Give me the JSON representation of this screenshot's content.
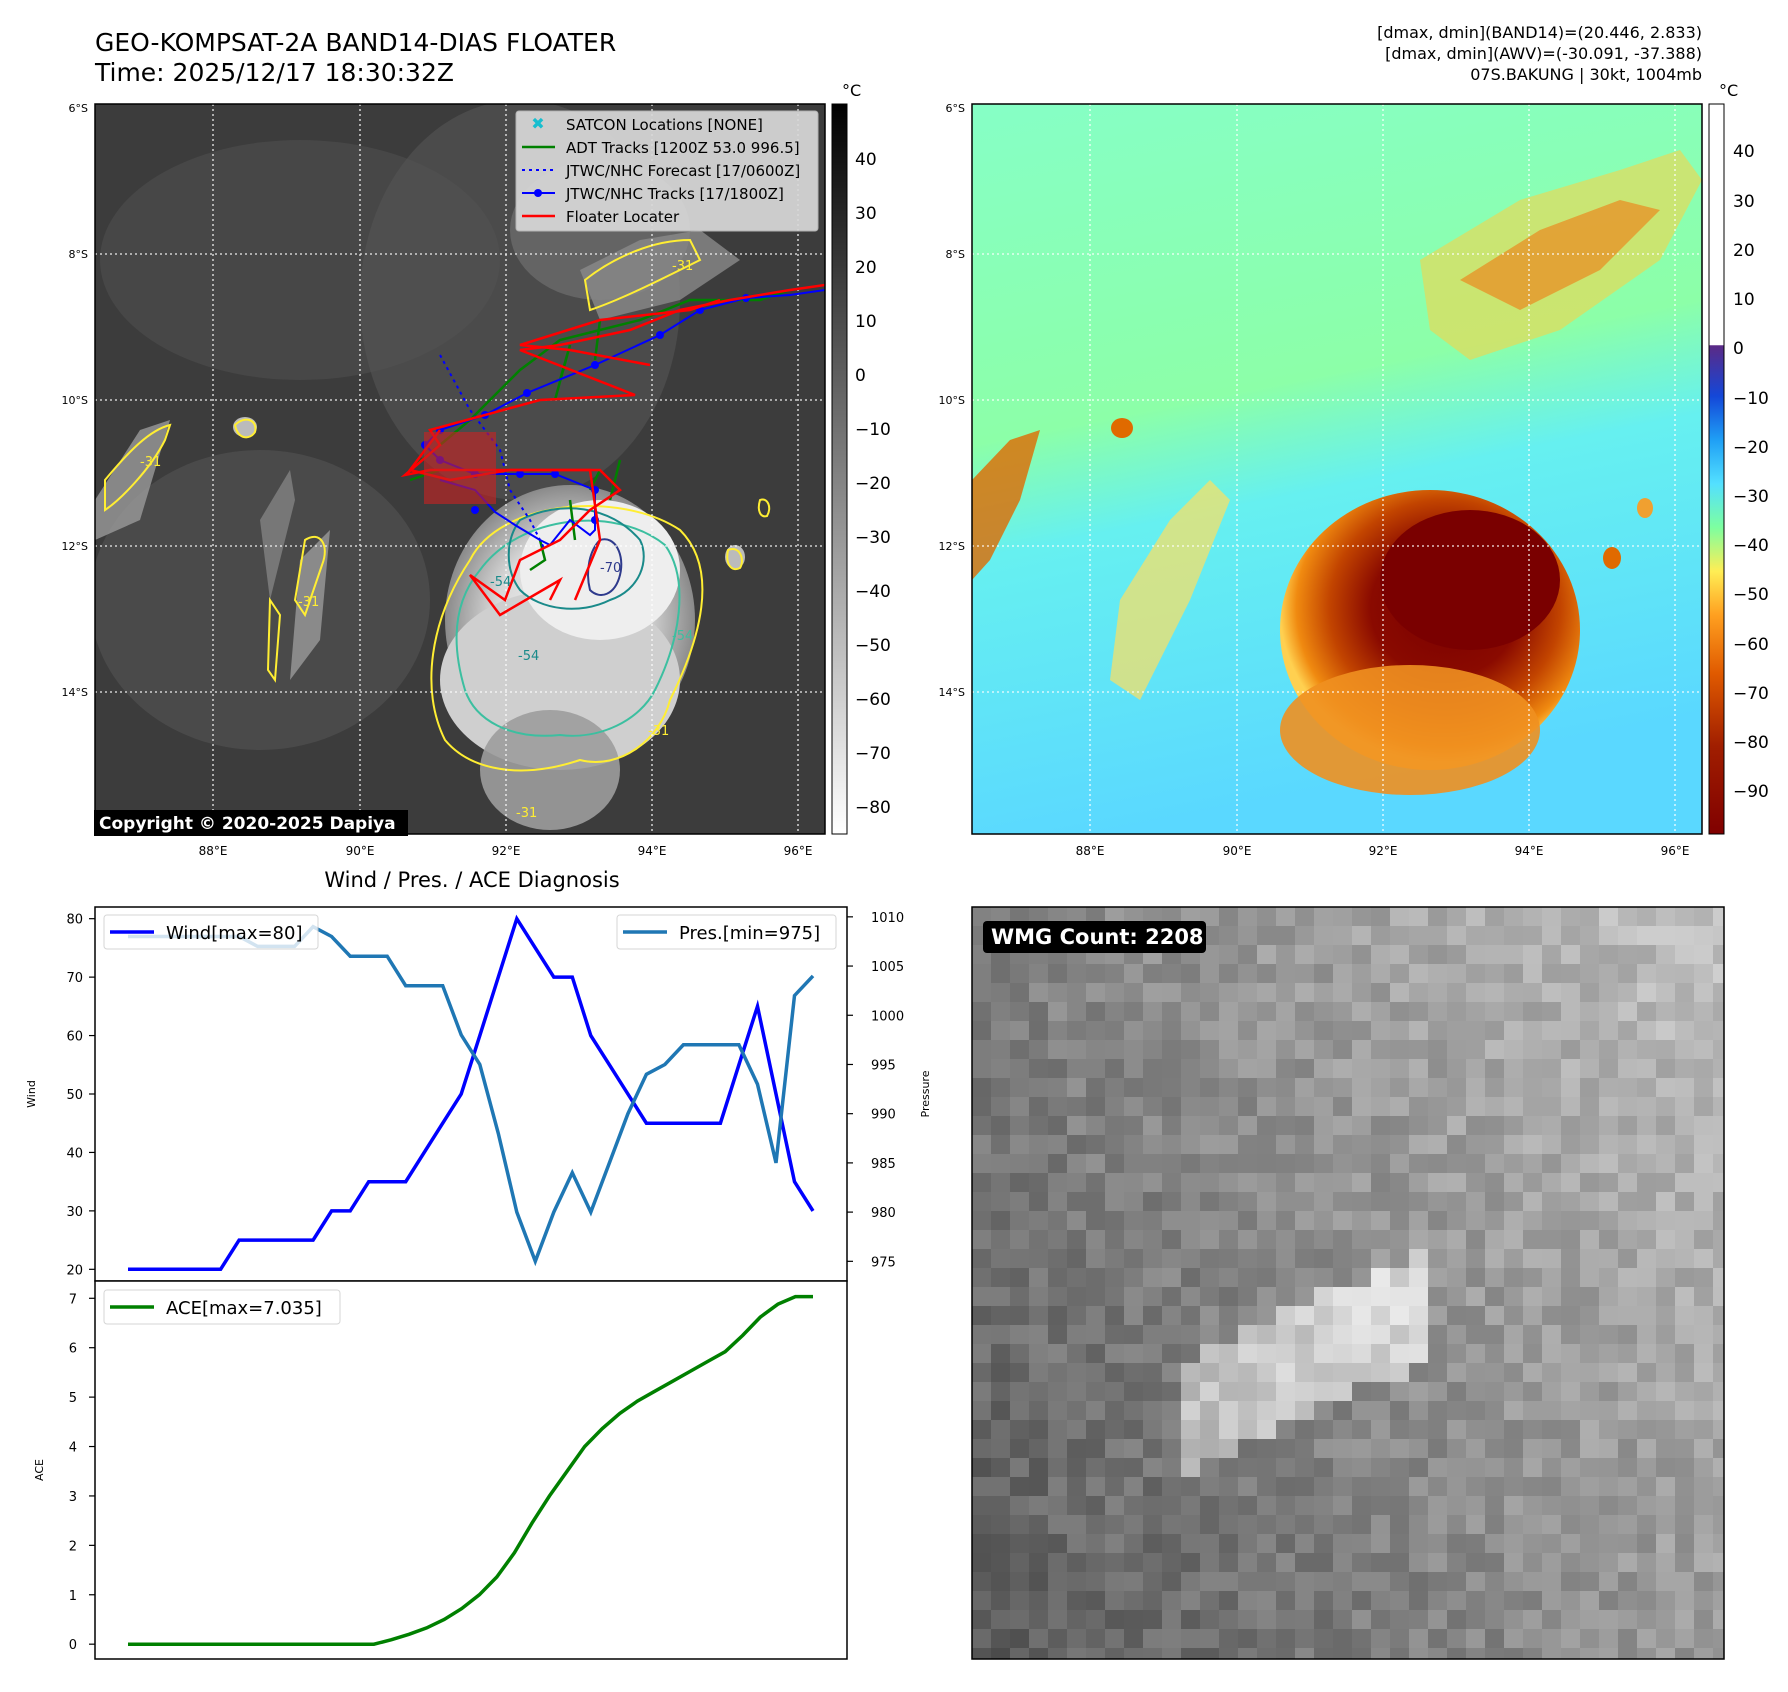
{
  "header": {
    "title_line1": "GEO-KOMPSAT-2A BAND14-DIAS FLOATER",
    "title_line2": "Time: 2025/12/17 18:30:32Z",
    "info_line1": "[dmax, dmin](BAND14)=(20.446, 2.833)",
    "info_line2": "[dmax, dmin](AWV)=(-30.091, -37.388)",
    "info_line3": "07S.BAKUNG | 30kt, 1004mb"
  },
  "ir_panel": {
    "lat_labels": [
      "6°S",
      "8°S",
      "10°S",
      "12°S",
      "14°S"
    ],
    "lon_labels": [
      "88°E",
      "90°E",
      "92°E",
      "94°E",
      "96°E"
    ],
    "colorbar_unit": "°C",
    "colorbar_ticks": [
      "40",
      "30",
      "20",
      "10",
      "0",
      "−10",
      "−20",
      "−30",
      "−40",
      "−50",
      "−60",
      "−70",
      "−80"
    ],
    "copyright": "Copyright © 2020-2025 Dapiya",
    "contour_labels": [
      "-31",
      "-31",
      "-31",
      "-31",
      "-31",
      "-54",
      "-54",
      "-70",
      "-54"
    ],
    "legend": [
      {
        "label": "SATCON Locations [NONE]",
        "color": "#17becf"
      },
      {
        "label": "ADT Tracks [1200Z 53.0 996.5]",
        "color": "#008000"
      },
      {
        "label": "JTWC/NHC Forecast [17/0600Z]",
        "color": "#0000ff"
      },
      {
        "label": "JTWC/NHC Tracks [17/1800Z]",
        "color": "#0000ff"
      },
      {
        "label": "Floater Locater",
        "color": "#ff0000"
      }
    ]
  },
  "wv_panel": {
    "lat_labels": [
      "6°S",
      "8°S",
      "10°S",
      "12°S",
      "14°S"
    ],
    "lon_labels": [
      "88°E",
      "90°E",
      "92°E",
      "94°E",
      "96°E"
    ],
    "colorbar_unit": "°C",
    "colorbar_ticks": [
      "40",
      "30",
      "20",
      "10",
      "0",
      "−10",
      "−20",
      "−30",
      "−40",
      "−50",
      "−60",
      "−70",
      "−80",
      "−90"
    ]
  },
  "wmg_panel": {
    "label": "WMG Count: 2208"
  },
  "chart_data": [
    {
      "type": "line",
      "title": "Wind / Pres. / ACE Diagnosis",
      "ylabel": "Wind",
      "ylabel_right": "Pressure",
      "ylim": [
        18,
        82
      ],
      "ylim_right": [
        973,
        1011
      ],
      "yticks": [
        20,
        30,
        40,
        50,
        60,
        70,
        80
      ],
      "yticks_right": [
        975,
        980,
        985,
        990,
        995,
        1000,
        1005,
        1010
      ],
      "series": [
        {
          "name": "Wind[max=80]",
          "axis": "left",
          "color": "#0000ff",
          "values": [
            20,
            20,
            20,
            20,
            20,
            20,
            25,
            25,
            25,
            25,
            25,
            30,
            30,
            35,
            35,
            35,
            40,
            45,
            50,
            60,
            70,
            80,
            75,
            70,
            70,
            60,
            55,
            50,
            45,
            45,
            45,
            45,
            45,
            55,
            65,
            50,
            35,
            30
          ]
        },
        {
          "name": "Pres.[min=975]",
          "axis": "right",
          "color": "#1f77b4",
          "values": [
            1008,
            1008,
            1008,
            1008,
            1008,
            1008,
            1008,
            1007,
            1007,
            1007,
            1009,
            1008,
            1006,
            1006,
            1006,
            1003,
            1003,
            1003,
            998,
            995,
            988,
            980,
            975,
            980,
            984,
            980,
            985,
            990,
            994,
            995,
            997,
            997,
            997,
            997,
            993,
            985,
            1002,
            1004
          ]
        }
      ]
    },
    {
      "type": "line",
      "ylabel": "ACE",
      "ylim": [
        -0.3,
        7.35
      ],
      "yticks": [
        0,
        1,
        2,
        3,
        4,
        5,
        6,
        7
      ],
      "series": [
        {
          "name": "ACE[max=7.035]",
          "color": "#008000",
          "values": [
            0,
            0,
            0,
            0,
            0,
            0,
            0,
            0,
            0,
            0,
            0,
            0,
            0,
            0,
            0,
            0.09,
            0.2,
            0.33,
            0.5,
            0.72,
            1.0,
            1.36,
            1.85,
            2.45,
            3.0,
            3.5,
            4.0,
            4.36,
            4.67,
            4.92,
            5.12,
            5.32,
            5.52,
            5.72,
            5.92,
            6.25,
            6.62,
            6.88,
            7.035,
            7.035
          ]
        }
      ]
    }
  ]
}
